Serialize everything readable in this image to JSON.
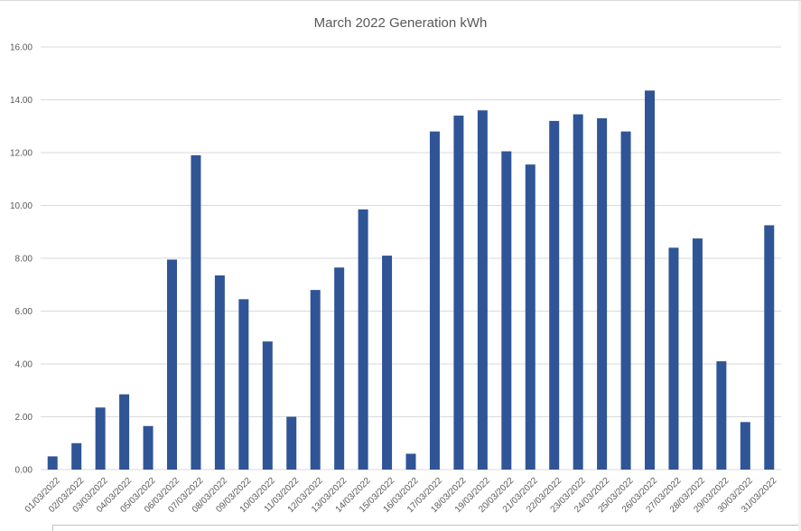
{
  "chart_data": {
    "type": "bar",
    "title": "March 2022 Generation kWh",
    "xlabel": "",
    "ylabel": "",
    "ylim": [
      0,
      16
    ],
    "yticks": [
      "0.00",
      "2.00",
      "4.00",
      "6.00",
      "8.00",
      "10.00",
      "12.00",
      "14.00",
      "16.00"
    ],
    "grid": true,
    "bar_color": "#2f5597",
    "categories": [
      "01/03/2022",
      "02/03/2022",
      "03/03/2022",
      "04/03/2022",
      "05/03/2022",
      "06/03/2022",
      "07/03/2022",
      "08/03/2022",
      "09/03/2022",
      "10/03/2022",
      "11/03/2022",
      "12/03/2022",
      "13/03/2022",
      "14/03/2022",
      "15/03/2022",
      "16/03/2022",
      "17/03/2022",
      "18/03/2022",
      "19/03/2022",
      "20/03/2022",
      "21/03/2022",
      "22/03/2022",
      "23/03/2022",
      "24/03/2022",
      "25/03/2022",
      "26/03/2022",
      "27/03/2022",
      "28/03/2022",
      "29/03/2022",
      "30/03/2022",
      "31/03/2022"
    ],
    "values": [
      0.5,
      1.0,
      2.35,
      2.85,
      1.65,
      7.95,
      11.9,
      7.35,
      6.45,
      4.85,
      2.0,
      6.8,
      7.65,
      9.85,
      8.1,
      0.6,
      12.8,
      13.4,
      13.6,
      12.05,
      11.55,
      13.2,
      13.45,
      13.3,
      12.8,
      14.35,
      8.4,
      8.75,
      4.1,
      1.8,
      9.25
    ]
  }
}
